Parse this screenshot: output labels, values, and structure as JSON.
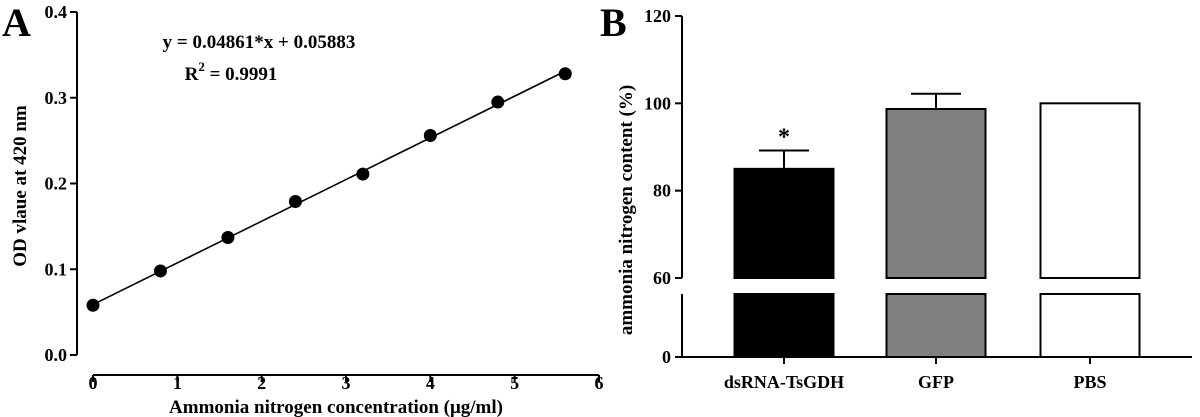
{
  "chart_data": [
    {
      "panel": "A",
      "type": "scatter",
      "xlabel": "Ammonia nitrogen concentration (μg/ml)",
      "ylabel": "OD vlaue at 420 nm",
      "xlim": [
        0,
        6
      ],
      "ylim": [
        0.0,
        0.4
      ],
      "xticks": [
        "0",
        "1",
        "2",
        "3",
        "4",
        "5",
        "6"
      ],
      "yticks": [
        "0.0",
        "0.1",
        "0.2",
        "0.3",
        "0.4"
      ],
      "points": {
        "x": [
          0,
          0.8,
          1.6,
          2.4,
          3.2,
          4.0,
          4.8,
          5.6
        ],
        "y": [
          0.058,
          0.098,
          0.137,
          0.179,
          0.211,
          0.256,
          0.295,
          0.328
        ]
      },
      "fit": {
        "slope": 0.04861,
        "intercept": 0.05883,
        "x_range": [
          0,
          5.6
        ]
      },
      "equation_text": "y = 0.04861*x + 0.05883",
      "r2_prefix": "R",
      "r2_exp": "2",
      "r2_suffix": " = 0.9991",
      "grid": false
    },
    {
      "panel": "B",
      "type": "bar",
      "ylabel": "ammonia nitrogen content (%)",
      "categories": [
        "dsRNA-TsGDH",
        "GFP",
        "PBS"
      ],
      "values": [
        85,
        98.7,
        100
      ],
      "errors": [
        4.2,
        3.5,
        0
      ],
      "colors": [
        "#000000",
        "#808080",
        "#ffffff"
      ],
      "significance": [
        "*",
        "",
        ""
      ],
      "y_axis_break": {
        "lower": [
          0,
          60
        ],
        "upper": [
          60,
          120
        ]
      },
      "yticks": [
        "0",
        "60",
        "80",
        "100",
        "120"
      ],
      "grid": false
    }
  ],
  "panels": {
    "a_label": "A",
    "b_label": "B"
  }
}
